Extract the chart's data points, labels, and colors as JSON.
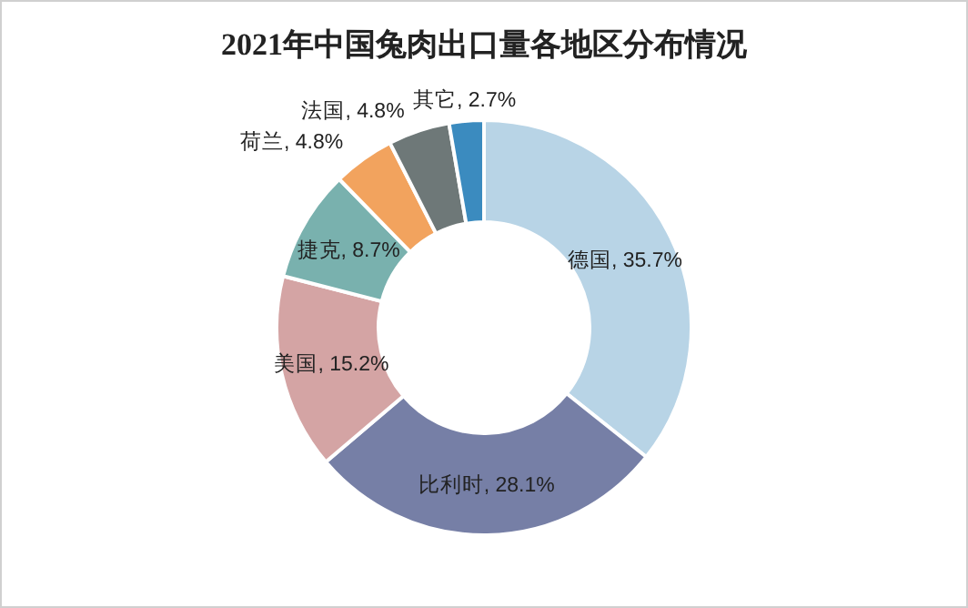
{
  "chart_data": {
    "type": "donut",
    "title": "2021年中国兔肉出口量各地区分布情况",
    "categories": [
      "德国",
      "比利时",
      "美国",
      "捷克",
      "荷兰",
      "法国",
      "其它"
    ],
    "values": [
      35.7,
      28.1,
      15.2,
      8.7,
      4.8,
      4.8,
      2.7
    ],
    "colors": [
      "#b8d4e6",
      "#767fa6",
      "#d4a4a4",
      "#79b1ae",
      "#f2a35e",
      "#6e7878",
      "#3b8bbf"
    ],
    "value_labels": [
      ", 35.7%",
      ", 28.1%",
      ", 15.2%",
      ", 8.7%",
      ", 4.8%",
      ", 4.8%",
      ", 2.7%"
    ]
  }
}
